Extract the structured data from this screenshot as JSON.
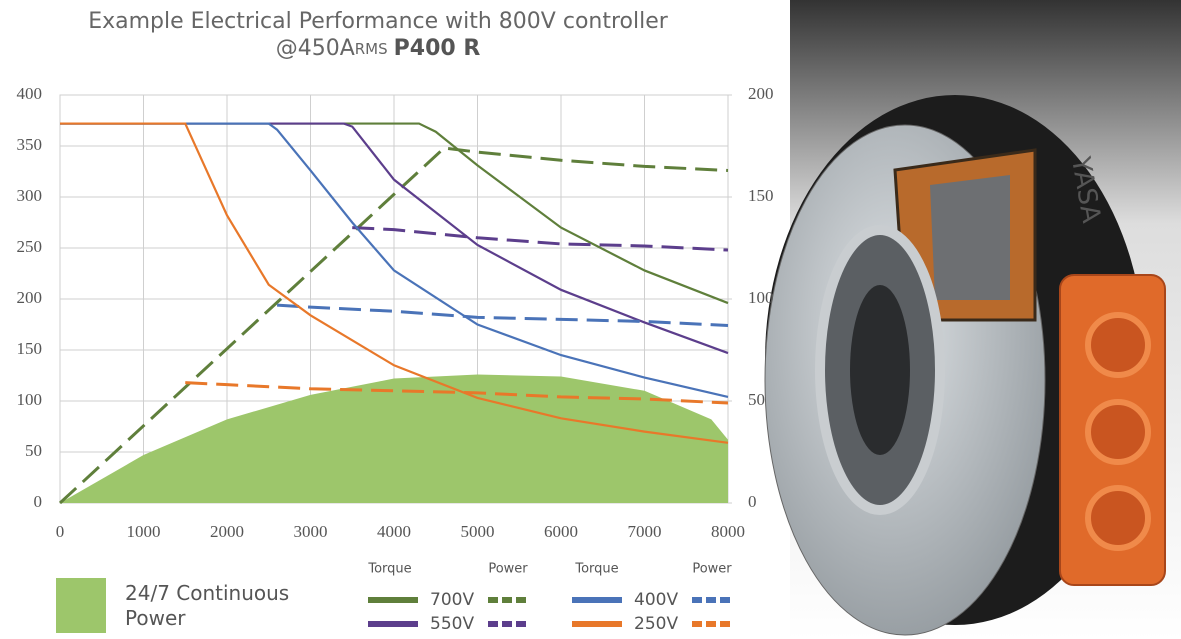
{
  "chart_data": {
    "type": "line",
    "title": "Example Electrical Performance with 800V controller",
    "subtitle": [
      "@450A",
      "RMS",
      "P400 R"
    ],
    "xlim": [
      0,
      8000
    ],
    "xticks": [
      0,
      1000,
      2000,
      3000,
      4000,
      5000,
      6000,
      7000,
      8000
    ],
    "ylim": [
      0,
      400
    ],
    "yticks": [
      0,
      50,
      100,
      150,
      200,
      250,
      300,
      350,
      400
    ],
    "y2lim": [
      0,
      200
    ],
    "y2ticks": [
      0,
      50,
      100,
      150,
      200
    ],
    "grid": true,
    "legend_headers": [
      "Torque",
      "Power",
      "Torque",
      "Power"
    ],
    "area": {
      "name": "24/7 Continuous Power",
      "color": "#9dc66b",
      "axis": "y2",
      "x": [
        0,
        1000,
        2000,
        3000,
        4000,
        5000,
        6000,
        7000,
        7800,
        8000
      ],
      "values": [
        0,
        23.5,
        41,
        53,
        61,
        63,
        62,
        55,
        41,
        31
      ]
    },
    "series": [
      {
        "name": "700V",
        "color": "#5f7f3b",
        "torque": {
          "x": [
            0,
            4300,
            4500,
            5000,
            6000,
            7000,
            8000
          ],
          "values": [
            372,
            372,
            364,
            331,
            270,
            228,
            196
          ]
        },
        "power": {
          "x": [
            0,
            4600,
            5000,
            6000,
            7000,
            8000
          ],
          "values": [
            0,
            174,
            172,
            168,
            165,
            163
          ]
        }
      },
      {
        "name": "550V",
        "color": "#5c3e8c",
        "torque": {
          "x": [
            0,
            3400,
            3500,
            4000,
            5000,
            6000,
            7000,
            8000
          ],
          "values": [
            372,
            372,
            369,
            317,
            253,
            209,
            177,
            147
          ]
        },
        "power": {
          "x": [
            3500,
            4000,
            5000,
            6000,
            7000,
            8000
          ],
          "values": [
            135,
            134,
            130,
            127,
            126,
            124
          ]
        }
      },
      {
        "name": "400V",
        "color": "#4a73b8",
        "torque": {
          "x": [
            0,
            2500,
            2600,
            3000,
            3500,
            4000,
            5000,
            6000,
            7000,
            8000
          ],
          "values": [
            372,
            372,
            366,
            326,
            275,
            228,
            175,
            145,
            123,
            104
          ]
        },
        "power": {
          "x": [
            2600,
            3000,
            4000,
            5000,
            6000,
            7000,
            8000
          ],
          "values": [
            97,
            96,
            94,
            91,
            90,
            89,
            87
          ]
        }
      },
      {
        "name": "250V",
        "color": "#e8782a",
        "torque": {
          "x": [
            0,
            1500,
            1700,
            2000,
            2500,
            3000,
            4000,
            5000,
            6000,
            7000,
            8000
          ],
          "values": [
            372,
            372,
            336,
            282,
            214,
            184,
            135,
            103,
            83,
            70,
            59
          ]
        },
        "power": {
          "x": [
            1500,
            2000,
            3000,
            4000,
            5000,
            6000,
            7000,
            8000
          ],
          "values": [
            59,
            58,
            56,
            55,
            54,
            52,
            51,
            49
          ]
        }
      }
    ],
    "photo_label": "YASA"
  }
}
